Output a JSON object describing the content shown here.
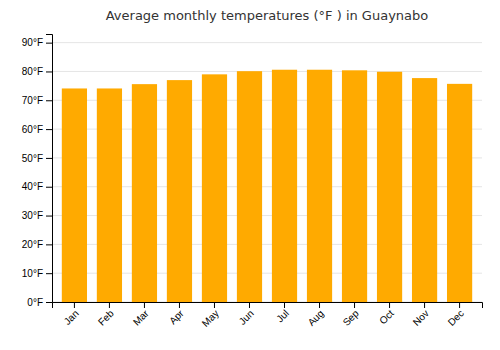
{
  "chart_data": {
    "type": "bar",
    "title": "Average monthly temperatures (°F ) in Guaynabo",
    "categories": [
      "Jan",
      "Feb",
      "Mar",
      "Apr",
      "May",
      "Jun",
      "Jul",
      "Aug",
      "Sep",
      "Oct",
      "Nov",
      "Dec"
    ],
    "values": [
      74.1,
      74.1,
      75.6,
      77.0,
      79.0,
      80.1,
      80.6,
      80.6,
      80.4,
      79.9,
      77.7,
      75.7
    ],
    "color": "#FFAA00",
    "ylim": [
      0,
      93
    ],
    "yticks": [
      {
        "value": 0,
        "label": "0°F"
      },
      {
        "value": 10,
        "label": "10°F"
      },
      {
        "value": 20,
        "label": "20°F"
      },
      {
        "value": 30,
        "label": "30°F"
      },
      {
        "value": 40,
        "label": "40°F"
      },
      {
        "value": 50,
        "label": "50°F"
      },
      {
        "value": 60,
        "label": "60°F"
      },
      {
        "value": 70,
        "label": "70°F"
      },
      {
        "value": 80,
        "label": "80°F"
      },
      {
        "value": 90,
        "label": "90°F"
      }
    ],
    "grid": true
  }
}
